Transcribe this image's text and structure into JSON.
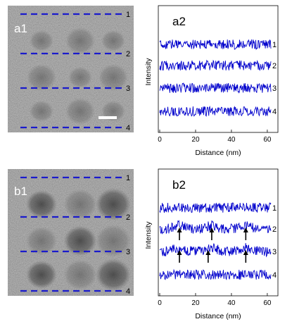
{
  "panels": {
    "a1": {
      "label": "a1",
      "line_labels": [
        "1",
        "2",
        "3",
        "4"
      ],
      "has_scale_bar": true
    },
    "b1": {
      "label": "b1",
      "line_labels": [
        "1",
        "2",
        "3",
        "4"
      ]
    }
  },
  "chart_data": [
    {
      "id": "a2",
      "type": "line",
      "title": "a2",
      "xlabel": "Distance (nm)",
      "ylabel": "Intensity",
      "xlim": [
        0,
        62
      ],
      "xticks": [
        0,
        20,
        40,
        60
      ],
      "series": [
        {
          "name": "1",
          "offset": 3,
          "color": "#0000cc"
        },
        {
          "name": "2",
          "offset": 2,
          "color": "#0000cc"
        },
        {
          "name": "3",
          "offset": 1,
          "color": "#0000cc"
        },
        {
          "name": "4",
          "offset": 0,
          "color": "#0000cc"
        }
      ],
      "arrows_x": []
    },
    {
      "id": "b2",
      "type": "line",
      "title": "b2",
      "xlabel": "Distance (nm)",
      "ylabel": "Intensity",
      "xlim": [
        0,
        62
      ],
      "xticks": [
        0,
        20,
        40,
        60
      ],
      "series": [
        {
          "name": "1",
          "offset": 3,
          "color": "#0000cc"
        },
        {
          "name": "2",
          "offset": 2,
          "color": "#0000cc"
        },
        {
          "name": "3",
          "offset": 1,
          "color": "#0000cc"
        },
        {
          "name": "4",
          "offset": 0,
          "color": "#0000cc"
        }
      ],
      "arrows_x": [
        11,
        29,
        48
      ]
    }
  ],
  "colors": {
    "trace": "#0000cc",
    "dashed_line": "#1a1acc",
    "micrograph_bg": "#8a8a8a"
  }
}
